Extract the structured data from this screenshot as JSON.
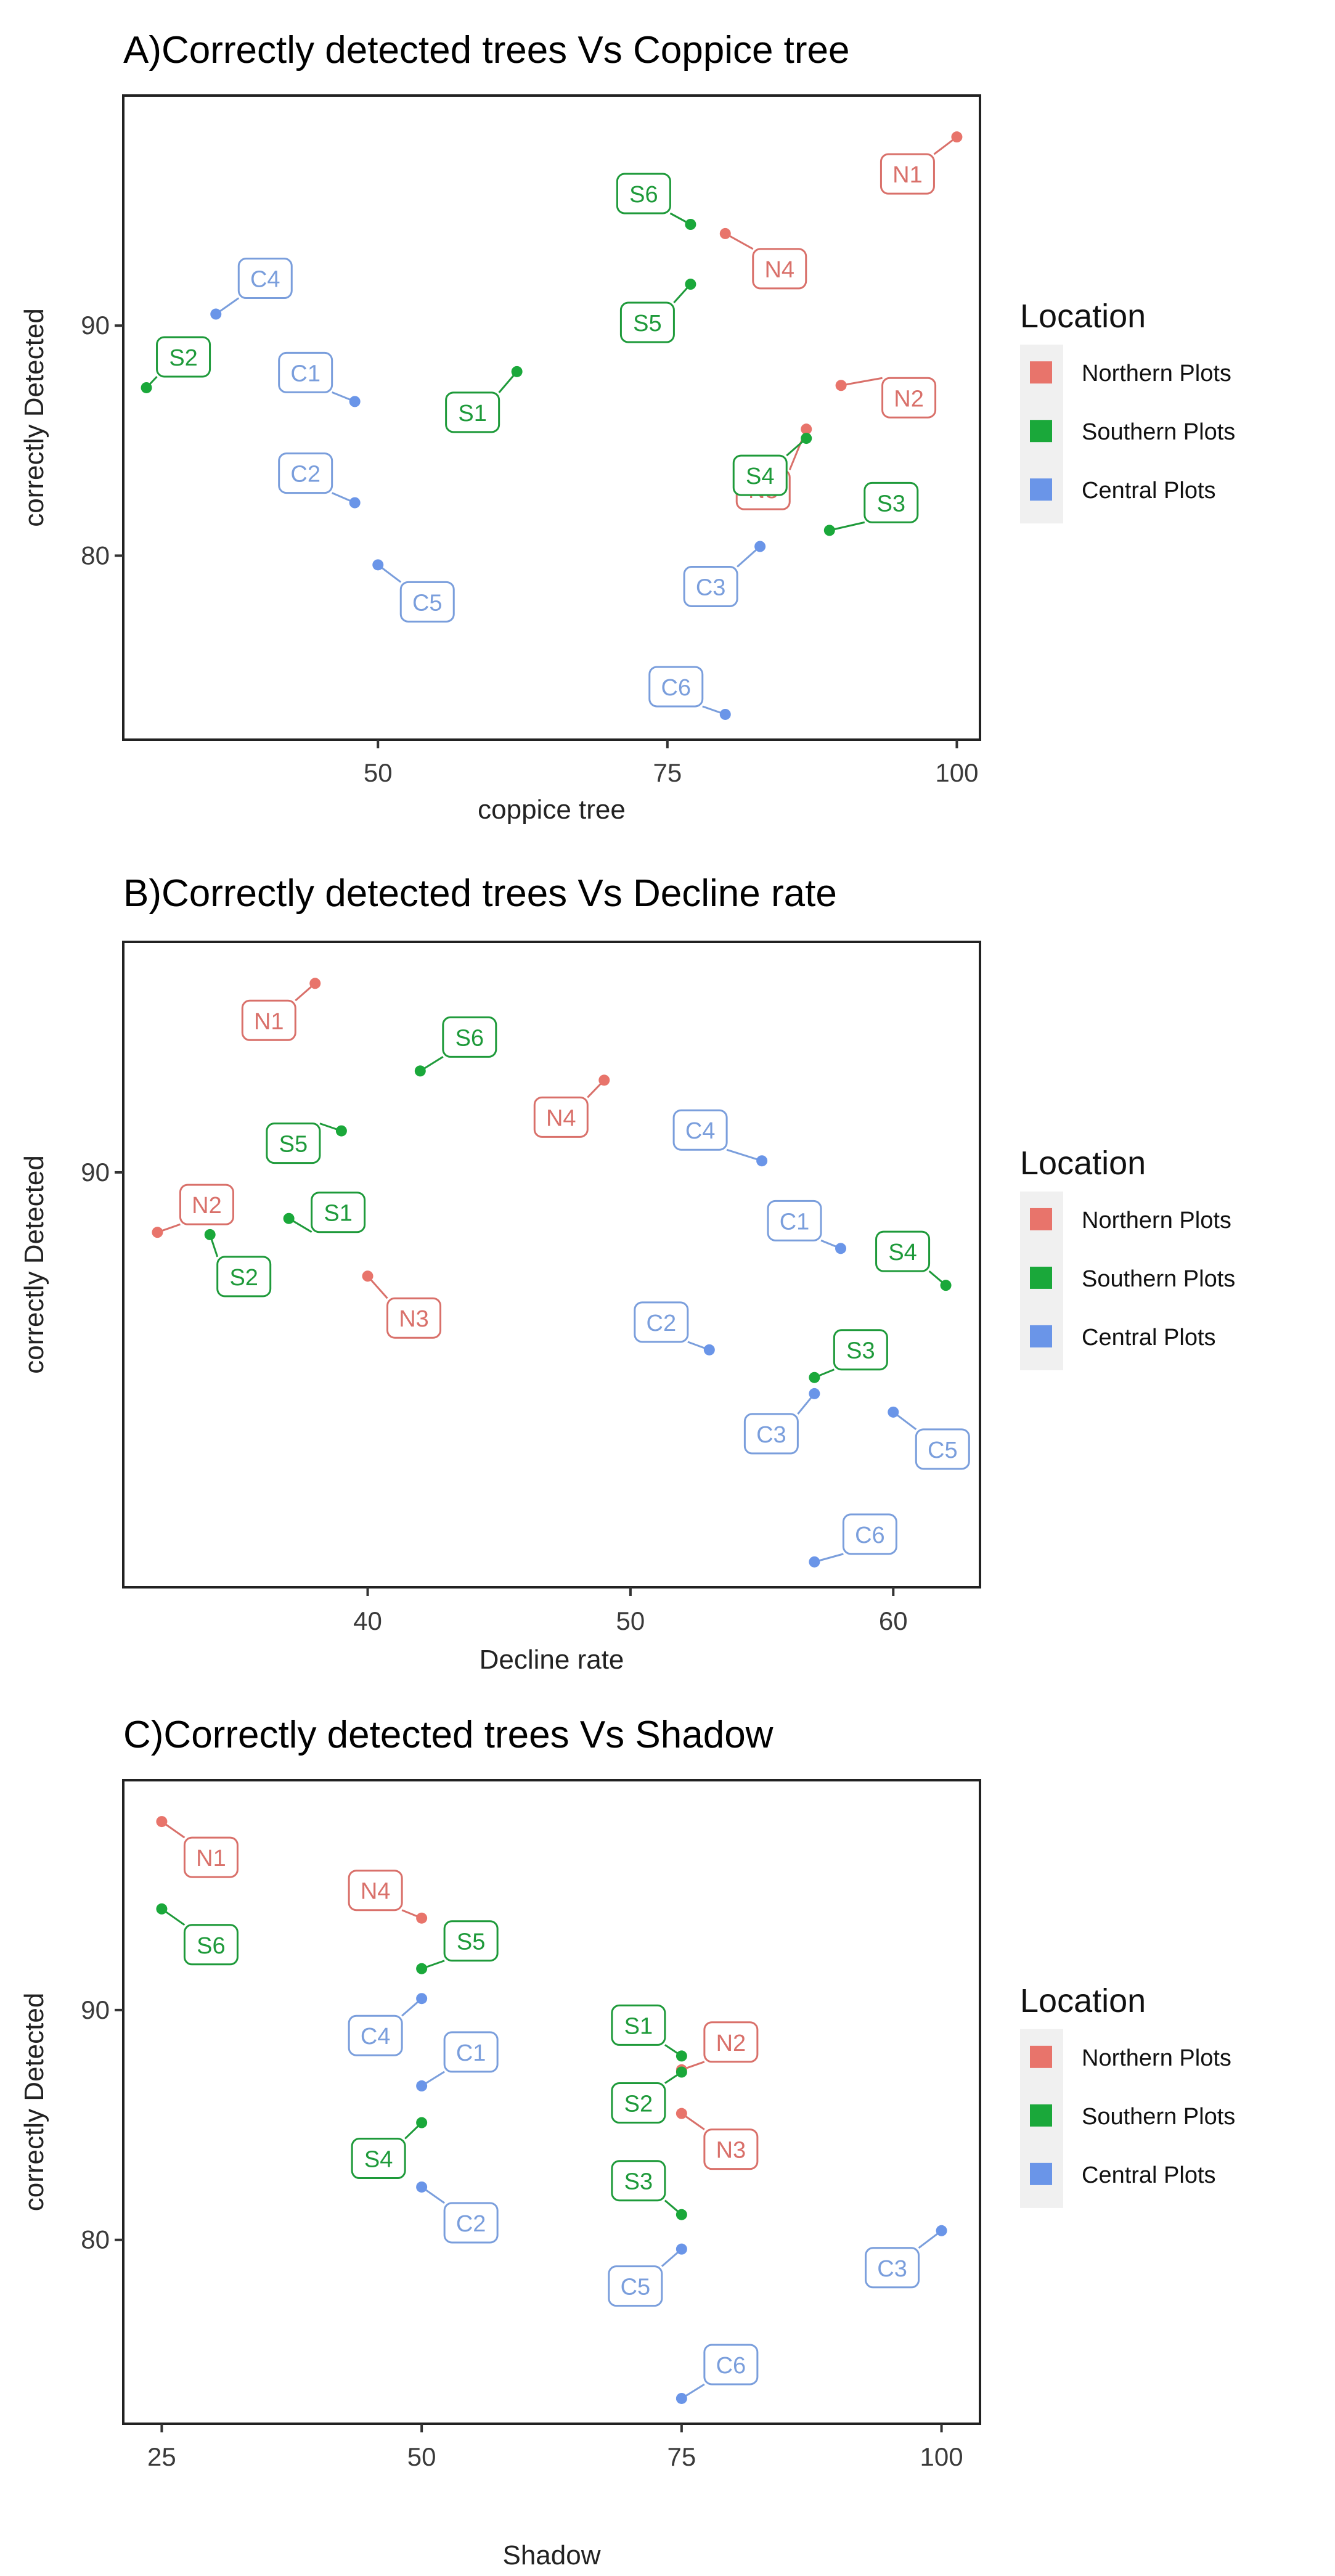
{
  "legend": {
    "title": "Location",
    "entries": [
      {
        "name": "Northern Plots",
        "color": "#e8746b"
      },
      {
        "name": "Southern Plots",
        "color": "#1aa83a"
      },
      {
        "name": "Central Plots",
        "color": "#6a95e8"
      }
    ]
  },
  "chart_data": [
    {
      "type": "scatter",
      "title": "A)Correctly detected trees Vs Coppice tree",
      "xlabel": "coppice tree",
      "ylabel": "correctly Detected",
      "xlim": [
        28,
        102
      ],
      "ylim": [
        72,
        100
      ],
      "xticks": [
        50,
        75,
        100
      ],
      "yticks": [
        80,
        90
      ],
      "points": [
        {
          "label": "N1",
          "group": "Northern Plots",
          "x": 100,
          "y": 98.2
        },
        {
          "label": "N2",
          "group": "Northern Plots",
          "x": 90,
          "y": 87.4
        },
        {
          "label": "N3",
          "group": "Northern Plots",
          "x": 87,
          "y": 85.5
        },
        {
          "label": "N4",
          "group": "Northern Plots",
          "x": 80,
          "y": 94.0
        },
        {
          "label": "S1",
          "group": "Southern Plots",
          "x": 62,
          "y": 88.0
        },
        {
          "label": "S2",
          "group": "Southern Plots",
          "x": 30,
          "y": 87.3
        },
        {
          "label": "S3",
          "group": "Southern Plots",
          "x": 89,
          "y": 81.1
        },
        {
          "label": "S4",
          "group": "Southern Plots",
          "x": 87,
          "y": 85.1
        },
        {
          "label": "S5",
          "group": "Southern Plots",
          "x": 77,
          "y": 91.8
        },
        {
          "label": "S6",
          "group": "Southern Plots",
          "x": 77,
          "y": 94.4
        },
        {
          "label": "C1",
          "group": "Central Plots",
          "x": 48,
          "y": 86.7
        },
        {
          "label": "C2",
          "group": "Central Plots",
          "x": 48,
          "y": 82.3
        },
        {
          "label": "C3",
          "group": "Central Plots",
          "x": 83,
          "y": 80.4
        },
        {
          "label": "C4",
          "group": "Central Plots",
          "x": 36,
          "y": 90.5
        },
        {
          "label": "C5",
          "group": "Central Plots",
          "x": 50,
          "y": 79.6
        },
        {
          "label": "C6",
          "group": "Central Plots",
          "x": 80,
          "y": 73.1
        }
      ]
    },
    {
      "type": "scatter",
      "title": "B)Correctly detected trees Vs Decline rate",
      "xlabel": "Decline rate",
      "ylabel": "correctly Detected",
      "xlim": [
        30.7,
        63.3
      ],
      "ylim": [
        72,
        100
      ],
      "xticks": [
        40,
        50,
        60
      ],
      "yticks": [
        90
      ],
      "points": [
        {
          "label": "N1",
          "group": "Northern Plots",
          "x": 38,
          "y": 98.2
        },
        {
          "label": "N2",
          "group": "Northern Plots",
          "x": 32,
          "y": 87.4
        },
        {
          "label": "N3",
          "group": "Northern Plots",
          "x": 40,
          "y": 85.5
        },
        {
          "label": "N4",
          "group": "Northern Plots",
          "x": 49,
          "y": 94.0
        },
        {
          "label": "S1",
          "group": "Southern Plots",
          "x": 37,
          "y": 88.0
        },
        {
          "label": "S2",
          "group": "Southern Plots",
          "x": 34,
          "y": 87.3
        },
        {
          "label": "S3",
          "group": "Southern Plots",
          "x": 57,
          "y": 81.1
        },
        {
          "label": "S4",
          "group": "Southern Plots",
          "x": 62,
          "y": 85.1
        },
        {
          "label": "S5",
          "group": "Southern Plots",
          "x": 39,
          "y": 91.8
        },
        {
          "label": "S6",
          "group": "Southern Plots",
          "x": 42,
          "y": 94.4
        },
        {
          "label": "C1",
          "group": "Central Plots",
          "x": 58,
          "y": 86.7
        },
        {
          "label": "C2",
          "group": "Central Plots",
          "x": 53,
          "y": 82.3
        },
        {
          "label": "C3",
          "group": "Central Plots",
          "x": 57,
          "y": 80.4
        },
        {
          "label": "C4",
          "group": "Central Plots",
          "x": 55,
          "y": 90.5
        },
        {
          "label": "C5",
          "group": "Central Plots",
          "x": 60,
          "y": 79.6
        },
        {
          "label": "C6",
          "group": "Central Plots",
          "x": 57,
          "y": 73.1
        }
      ]
    },
    {
      "type": "scatter",
      "title": "C)Correctly detected trees Vs Shadow",
      "xlabel": "Shadow",
      "ylabel": "correctly Detected",
      "xlim": [
        21.3,
        103.7
      ],
      "ylim": [
        72,
        100
      ],
      "xticks": [
        25,
        50,
        75,
        100
      ],
      "yticks": [
        80,
        90
      ],
      "points": [
        {
          "label": "N1",
          "group": "Northern Plots",
          "x": 25,
          "y": 98.2
        },
        {
          "label": "N2",
          "group": "Northern Plots",
          "x": 75,
          "y": 87.4
        },
        {
          "label": "N3",
          "group": "Northern Plots",
          "x": 75,
          "y": 85.5
        },
        {
          "label": "N4",
          "group": "Northern Plots",
          "x": 50,
          "y": 94.0
        },
        {
          "label": "S1",
          "group": "Southern Plots",
          "x": 75,
          "y": 88.0
        },
        {
          "label": "S2",
          "group": "Southern Plots",
          "x": 75,
          "y": 87.3
        },
        {
          "label": "S3",
          "group": "Southern Plots",
          "x": 75,
          "y": 81.1
        },
        {
          "label": "S4",
          "group": "Southern Plots",
          "x": 50,
          "y": 85.1
        },
        {
          "label": "S5",
          "group": "Southern Plots",
          "x": 50,
          "y": 91.8
        },
        {
          "label": "S6",
          "group": "Southern Plots",
          "x": 25,
          "y": 94.4
        },
        {
          "label": "C1",
          "group": "Central Plots",
          "x": 50,
          "y": 86.7
        },
        {
          "label": "C2",
          "group": "Central Plots",
          "x": 50,
          "y": 82.3
        },
        {
          "label": "C3",
          "group": "Central Plots",
          "x": 100,
          "y": 80.4
        },
        {
          "label": "C4",
          "group": "Central Plots",
          "x": 50,
          "y": 90.5
        },
        {
          "label": "C5",
          "group": "Central Plots",
          "x": 75,
          "y": 79.6
        },
        {
          "label": "C6",
          "group": "Central Plots",
          "x": 75,
          "y": 73.1
        }
      ]
    }
  ]
}
